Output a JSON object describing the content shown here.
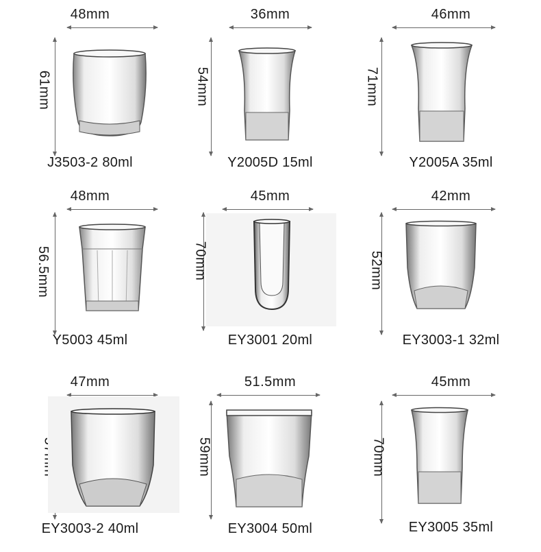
{
  "products": [
    {
      "width": "48mm",
      "height": "61mm",
      "model": "J3503-2 80ml"
    },
    {
      "width": "36mm",
      "height": "54mm",
      "model": "Y2005D 15ml"
    },
    {
      "width": "46mm",
      "height": "71mm",
      "model": "Y2005A 35ml"
    },
    {
      "width": "48mm",
      "height": "56.5mm",
      "model": "Y5003 45ml"
    },
    {
      "width": "45mm",
      "height": "70mm",
      "model": "EY3001 20ml"
    },
    {
      "width": "42mm",
      "height": "52mm",
      "model": "EY3003-1 32ml"
    },
    {
      "width": "47mm",
      "height": "57mm",
      "model": "EY3003-2 40ml"
    },
    {
      "width": "51.5mm",
      "height": "59mm",
      "model": "EY3004 50ml"
    },
    {
      "width": "45mm",
      "height": "70mm",
      "model": "EY3005 35ml"
    }
  ]
}
